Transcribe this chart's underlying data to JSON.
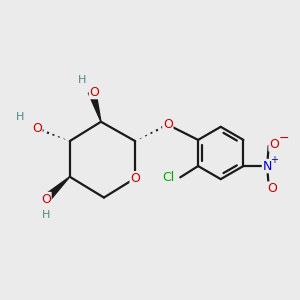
{
  "bg_color": "#ebebeb",
  "atom_colors": {
    "O": "#cc0000",
    "N": "#0000cc",
    "Cl": "#00aa00",
    "C": "#1a1a1a",
    "H": "#4a8a8a"
  },
  "bond_color": "#1a1a1a"
}
